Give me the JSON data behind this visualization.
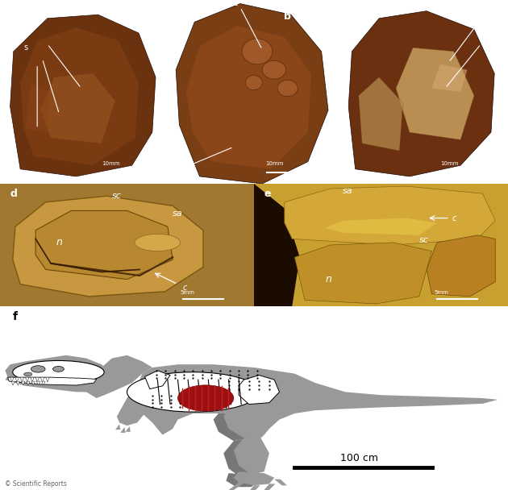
{
  "background_color": "#ffffff",
  "top_panel_bg": "#000000",
  "mid_panel_d_bg": "#4a3010",
  "mid_panel_e_bg": "#7a5c20",
  "gray": "#999999",
  "dark_gray": "#777777",
  "red_organ": "#8b1010",
  "panel_f_bg": "#ffffff",
  "label_white": "#ffffff",
  "label_black": "#000000",
  "copyright": "© Scientific Reports",
  "scale_100cm": "100 cm",
  "scale_10mm": "10mm",
  "scale_5mm": "5mm"
}
